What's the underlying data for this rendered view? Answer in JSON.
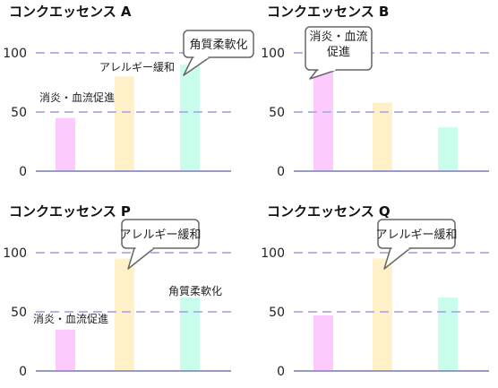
{
  "chart_data": [
    {
      "type": "bar",
      "title": "コンクエッセンス A",
      "categories": [
        "消炎・血流促進",
        "アレルギー緩和",
        "角質柔軟化"
      ],
      "values": [
        45,
        80,
        90
      ],
      "ylim": [
        0,
        120
      ],
      "yticks": [
        0,
        50,
        100
      ],
      "xlabel": "",
      "ylabel": "",
      "callout": [
        "角質柔軟化"
      ]
    },
    {
      "type": "bar",
      "title": "コンクエッセンス B",
      "categories": [
        "消炎・血流促進",
        "アレルギー緩和",
        "角質柔軟化"
      ],
      "values": [
        98,
        58,
        37
      ],
      "ylim": [
        0,
        120
      ],
      "yticks": [
        0,
        50,
        100
      ],
      "xlabel": "",
      "ylabel": "",
      "callout": [
        "消炎・血流",
        "促進"
      ]
    },
    {
      "type": "bar",
      "title": "コンクエッセンス P",
      "categories": [
        "消炎・血流促進",
        "アレルギー緩和",
        "角質柔軟化"
      ],
      "values": [
        35,
        95,
        62
      ],
      "ylim": [
        0,
        120
      ],
      "yticks": [
        0,
        50,
        100
      ],
      "xlabel": "",
      "ylabel": "",
      "callout": [
        "アレルギー緩和"
      ]
    },
    {
      "type": "bar",
      "title": "コンクエッセンス Q",
      "categories": [
        "消炎・血流促進",
        "アレルギー緩和",
        "角質柔軟化"
      ],
      "values": [
        47,
        95,
        62
      ],
      "ylim": [
        0,
        120
      ],
      "yticks": [
        0,
        50,
        100
      ],
      "xlabel": "",
      "ylabel": "",
      "callout": [
        "アレルギー緩和"
      ]
    }
  ],
  "colors": [
    "#fdcafd",
    "#fff0c8",
    "#c8fdeb"
  ],
  "gridline_color": "#b4b4ec",
  "axis_color": "#9a9ac8"
}
